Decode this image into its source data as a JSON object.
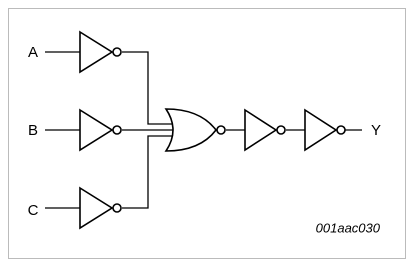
{
  "inputs": [
    "A",
    "B",
    "C"
  ],
  "output": "Y",
  "figure_id": "001aac030"
}
